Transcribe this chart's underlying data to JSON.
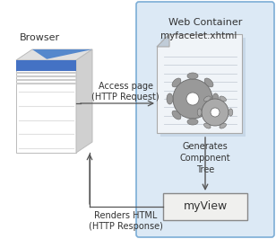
{
  "bg_color": "#ffffff",
  "container_bg": "#dce9f5",
  "container_border": "#7badd6",
  "container_label": "Web Container",
  "file_label": "myfacelet.xhtml",
  "myview_label": "myView",
  "generates_label": "Generates\nComponent\nTree",
  "browser_label": "Browser",
  "access_label": "Access page\n(HTTP Request)",
  "renders_label": "Renders HTML\n(HTTP Response)",
  "arrow_color": "#555555",
  "text_color": "#333333"
}
